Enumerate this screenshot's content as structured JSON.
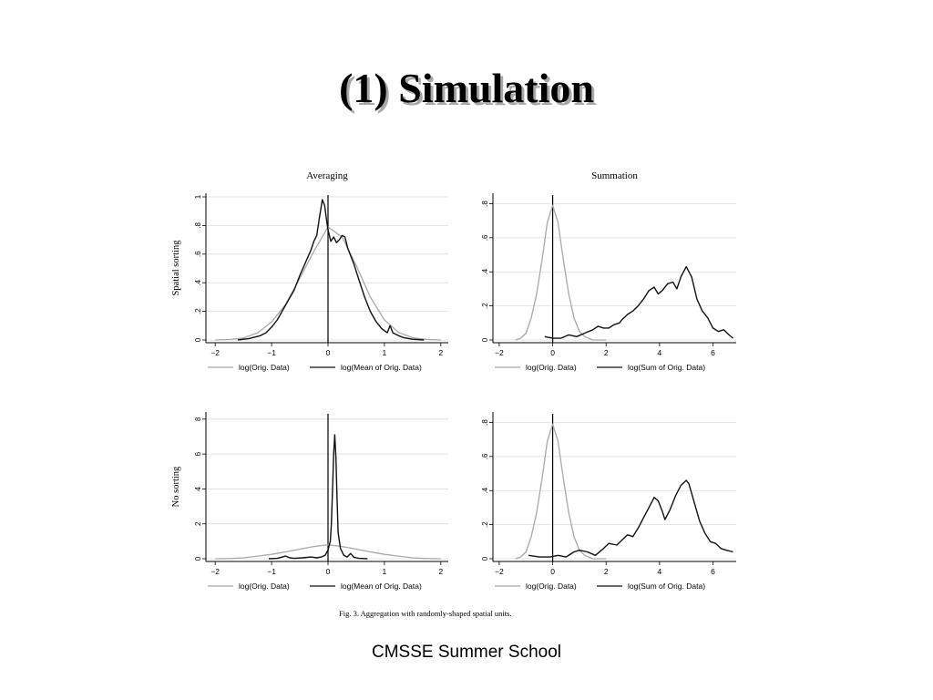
{
  "slide": {
    "title": "(1) Simulation",
    "footer": "CMSSE Summer School"
  },
  "figure": {
    "caption": "Fig. 3. Aggregation with randomly-shaped spatial units.",
    "column_titles": [
      "Averaging",
      "Summation"
    ],
    "row_labels": [
      "Spatial sorting",
      "No sorting"
    ],
    "colors": {
      "orig": "#a8a8a8",
      "agg": "#111111",
      "grid": "#dddddd"
    }
  },
  "chart_data": [
    {
      "type": "line",
      "panel": "top-left",
      "title": "Averaging",
      "ylabel": "Spatial sorting",
      "xlim": [
        -2.1,
        2.1
      ],
      "ylim": [
        0,
        1.0
      ],
      "xticks": [
        -2,
        -1,
        0,
        1,
        2
      ],
      "yticks": [
        0,
        0.2,
        0.4,
        0.6,
        0.8,
        1
      ],
      "ytick_labels": [
        "0",
        ".2",
        ".4",
        ".6",
        ".8",
        "1"
      ],
      "grid": true,
      "legend": "bottom",
      "series": [
        {
          "name": "log(Orig. Data)",
          "style": "orig",
          "points": [
            [
              -2,
              0.0
            ],
            [
              -1.75,
              0.003
            ],
            [
              -1.5,
              0.014
            ],
            [
              -1.25,
              0.049
            ],
            [
              -1.0,
              0.126
            ],
            [
              -0.75,
              0.25
            ],
            [
              -0.5,
              0.43
            ],
            [
              -0.25,
              0.62
            ],
            [
              0,
              0.79
            ],
            [
              0.25,
              0.72
            ],
            [
              0.5,
              0.52
            ],
            [
              0.75,
              0.3
            ],
            [
              1.0,
              0.14
            ],
            [
              1.25,
              0.052
            ],
            [
              1.5,
              0.016
            ],
            [
              1.75,
              0.004
            ],
            [
              2,
              0.0
            ]
          ]
        },
        {
          "name": "log(Mean of Orig. Data)",
          "style": "agg",
          "points": [
            [
              -1.6,
              0.0
            ],
            [
              -1.4,
              0.01
            ],
            [
              -1.2,
              0.03
            ],
            [
              -1.1,
              0.05
            ],
            [
              -1.0,
              0.09
            ],
            [
              -0.9,
              0.14
            ],
            [
              -0.8,
              0.21
            ],
            [
              -0.7,
              0.28
            ],
            [
              -0.6,
              0.35
            ],
            [
              -0.5,
              0.45
            ],
            [
              -0.4,
              0.54
            ],
            [
              -0.3,
              0.63
            ],
            [
              -0.25,
              0.69
            ],
            [
              -0.2,
              0.73
            ],
            [
              -0.15,
              0.86
            ],
            [
              -0.1,
              0.98
            ],
            [
              -0.06,
              0.94
            ],
            [
              -0.02,
              0.82
            ],
            [
              0.0,
              0.77
            ],
            [
              0.05,
              0.69
            ],
            [
              0.1,
              0.72
            ],
            [
              0.15,
              0.68
            ],
            [
              0.2,
              0.7
            ],
            [
              0.25,
              0.73
            ],
            [
              0.3,
              0.72
            ],
            [
              0.35,
              0.64
            ],
            [
              0.45,
              0.54
            ],
            [
              0.55,
              0.42
            ],
            [
              0.65,
              0.3
            ],
            [
              0.75,
              0.2
            ],
            [
              0.85,
              0.13
            ],
            [
              0.95,
              0.08
            ],
            [
              1.05,
              0.05
            ],
            [
              1.1,
              0.1
            ],
            [
              1.15,
              0.05
            ],
            [
              1.25,
              0.03
            ],
            [
              1.35,
              0.015
            ],
            [
              1.5,
              0.005
            ],
            [
              1.7,
              0.0
            ]
          ]
        }
      ]
    },
    {
      "type": "line",
      "panel": "top-right",
      "title": "Summation",
      "ylabel": "",
      "xlim": [
        -2.1,
        6.8
      ],
      "ylim": [
        0,
        0.84
      ],
      "xticks": [
        -2,
        0,
        2,
        4,
        6
      ],
      "yticks": [
        0,
        0.2,
        0.4,
        0.6,
        0.8
      ],
      "ytick_labels": [
        "0",
        ".2",
        ".4",
        ".6",
        ".8"
      ],
      "grid": true,
      "legend": "bottom",
      "series": [
        {
          "name": "log(Orig. Data)",
          "style": "orig",
          "points": [
            [
              -1.4,
              0.0
            ],
            [
              -1.2,
              0.01
            ],
            [
              -1.0,
              0.04
            ],
            [
              -0.8,
              0.13
            ],
            [
              -0.6,
              0.27
            ],
            [
              -0.4,
              0.47
            ],
            [
              -0.2,
              0.69
            ],
            [
              0,
              0.79
            ],
            [
              0.2,
              0.69
            ],
            [
              0.4,
              0.47
            ],
            [
              0.6,
              0.27
            ],
            [
              0.8,
              0.13
            ],
            [
              1.0,
              0.05
            ],
            [
              1.2,
              0.02
            ],
            [
              1.5,
              0.0
            ],
            [
              2.0,
              0.0
            ]
          ]
        },
        {
          "name": "log(Sum of Orig. Data)",
          "style": "agg",
          "points": [
            [
              -0.3,
              0.02
            ],
            [
              0,
              0.01
            ],
            [
              0.3,
              0.01
            ],
            [
              0.6,
              0.03
            ],
            [
              0.9,
              0.02
            ],
            [
              1.2,
              0.04
            ],
            [
              1.5,
              0.06
            ],
            [
              1.7,
              0.08
            ],
            [
              1.9,
              0.07
            ],
            [
              2.1,
              0.07
            ],
            [
              2.3,
              0.09
            ],
            [
              2.5,
              0.1
            ],
            [
              2.6,
              0.12
            ],
            [
              2.8,
              0.15
            ],
            [
              3.0,
              0.17
            ],
            [
              3.2,
              0.2
            ],
            [
              3.4,
              0.24
            ],
            [
              3.6,
              0.29
            ],
            [
              3.8,
              0.31
            ],
            [
              3.95,
              0.27
            ],
            [
              4.1,
              0.29
            ],
            [
              4.3,
              0.33
            ],
            [
              4.5,
              0.34
            ],
            [
              4.65,
              0.3
            ],
            [
              4.8,
              0.37
            ],
            [
              5.0,
              0.43
            ],
            [
              5.2,
              0.37
            ],
            [
              5.4,
              0.24
            ],
            [
              5.6,
              0.17
            ],
            [
              5.8,
              0.13
            ],
            [
              6.0,
              0.07
            ],
            [
              6.2,
              0.05
            ],
            [
              6.4,
              0.06
            ],
            [
              6.6,
              0.03
            ],
            [
              6.75,
              0.01
            ]
          ]
        }
      ]
    },
    {
      "type": "line",
      "panel": "bottom-left",
      "title": "",
      "ylabel": "No sorting",
      "xlim": [
        -2.1,
        2.1
      ],
      "ylim": [
        0,
        8.2
      ],
      "xticks": [
        -2,
        -1,
        0,
        1,
        2
      ],
      "yticks": [
        0,
        2,
        4,
        6,
        8
      ],
      "ytick_labels": [
        "0",
        "2",
        "4",
        "6",
        "8"
      ],
      "grid": true,
      "legend": "bottom",
      "series": [
        {
          "name": "log(Orig. Data)",
          "style": "orig",
          "points": [
            [
              -2,
              0.0
            ],
            [
              -1.75,
              0.01
            ],
            [
              -1.5,
              0.05
            ],
            [
              -1.25,
              0.15
            ],
            [
              -1.0,
              0.25
            ],
            [
              -0.75,
              0.39
            ],
            [
              -0.5,
              0.55
            ],
            [
              -0.25,
              0.7
            ],
            [
              0,
              0.8
            ],
            [
              0.25,
              0.7
            ],
            [
              0.5,
              0.55
            ],
            [
              0.75,
              0.39
            ],
            [
              1.0,
              0.25
            ],
            [
              1.25,
              0.15
            ],
            [
              1.5,
              0.05
            ],
            [
              1.75,
              0.01
            ],
            [
              2,
              0.0
            ]
          ]
        },
        {
          "name": "log(Mean of Orig. Data)",
          "style": "agg",
          "points": [
            [
              -1.05,
              0.0
            ],
            [
              -0.9,
              0.02
            ],
            [
              -0.75,
              0.15
            ],
            [
              -0.68,
              0.05
            ],
            [
              -0.6,
              0.02
            ],
            [
              -0.45,
              0.05
            ],
            [
              -0.3,
              0.1
            ],
            [
              -0.2,
              0.05
            ],
            [
              -0.12,
              0.1
            ],
            [
              -0.05,
              0.2
            ],
            [
              0.0,
              0.5
            ],
            [
              0.04,
              1.0
            ],
            [
              0.06,
              2.0
            ],
            [
              0.08,
              4.0
            ],
            [
              0.1,
              6.0
            ],
            [
              0.12,
              7.1
            ],
            [
              0.14,
              5.8
            ],
            [
              0.16,
              3.5
            ],
            [
              0.18,
              1.5
            ],
            [
              0.22,
              0.6
            ],
            [
              0.28,
              0.2
            ],
            [
              0.34,
              0.1
            ],
            [
              0.4,
              0.3
            ],
            [
              0.46,
              0.08
            ],
            [
              0.55,
              0.02
            ],
            [
              0.7,
              0.0
            ]
          ]
        }
      ]
    },
    {
      "type": "line",
      "panel": "bottom-right",
      "title": "",
      "ylabel": "",
      "xlim": [
        -2.1,
        6.8
      ],
      "ylim": [
        0,
        0.84
      ],
      "xticks": [
        -2,
        0,
        2,
        4,
        6
      ],
      "yticks": [
        0,
        0.2,
        0.4,
        0.6,
        0.8
      ],
      "ytick_labels": [
        "0",
        ".2",
        ".4",
        ".6",
        ".8"
      ],
      "grid": true,
      "legend": "bottom",
      "series": [
        {
          "name": "log(Orig. Data)",
          "style": "orig",
          "points": [
            [
              -1.4,
              0.0
            ],
            [
              -1.2,
              0.01
            ],
            [
              -1.0,
              0.04
            ],
            [
              -0.8,
              0.13
            ],
            [
              -0.6,
              0.27
            ],
            [
              -0.4,
              0.47
            ],
            [
              -0.2,
              0.69
            ],
            [
              0,
              0.79
            ],
            [
              0.2,
              0.69
            ],
            [
              0.4,
              0.47
            ],
            [
              0.6,
              0.27
            ],
            [
              0.8,
              0.13
            ],
            [
              1.0,
              0.05
            ],
            [
              1.2,
              0.02
            ],
            [
              1.5,
              0.0
            ],
            [
              2.0,
              0.0
            ]
          ]
        },
        {
          "name": "log(Sum of Orig. Data)",
          "style": "agg",
          "points": [
            [
              -0.9,
              0.02
            ],
            [
              -0.5,
              0.01
            ],
            [
              -0.1,
              0.01
            ],
            [
              0.2,
              0.02
            ],
            [
              0.5,
              0.01
            ],
            [
              0.8,
              0.04
            ],
            [
              1.0,
              0.05
            ],
            [
              1.3,
              0.04
            ],
            [
              1.6,
              0.02
            ],
            [
              1.9,
              0.06
            ],
            [
              2.1,
              0.09
            ],
            [
              2.4,
              0.08
            ],
            [
              2.6,
              0.11
            ],
            [
              2.8,
              0.14
            ],
            [
              3.0,
              0.13
            ],
            [
              3.2,
              0.18
            ],
            [
              3.4,
              0.24
            ],
            [
              3.6,
              0.3
            ],
            [
              3.8,
              0.36
            ],
            [
              3.95,
              0.34
            ],
            [
              4.1,
              0.28
            ],
            [
              4.2,
              0.23
            ],
            [
              4.4,
              0.29
            ],
            [
              4.6,
              0.37
            ],
            [
              4.8,
              0.43
            ],
            [
              5.0,
              0.46
            ],
            [
              5.1,
              0.44
            ],
            [
              5.3,
              0.33
            ],
            [
              5.5,
              0.22
            ],
            [
              5.7,
              0.15
            ],
            [
              5.9,
              0.1
            ],
            [
              6.1,
              0.09
            ],
            [
              6.3,
              0.06
            ],
            [
              6.5,
              0.05
            ],
            [
              6.75,
              0.04
            ]
          ]
        }
      ]
    }
  ]
}
